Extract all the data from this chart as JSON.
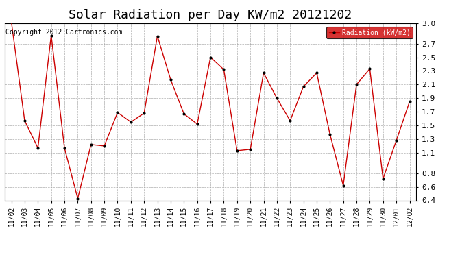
{
  "title": "Solar Radiation per Day KW/m2 20121202",
  "copyright_text": "Copyright 2012 Cartronics.com",
  "legend_label": "Radiation (kW/m2)",
  "x_labels": [
    "11/02",
    "11/03",
    "11/04",
    "11/05",
    "11/06",
    "11/07",
    "11/08",
    "11/09",
    "11/10",
    "11/11",
    "11/12",
    "11/13",
    "11/14",
    "11/15",
    "11/16",
    "11/17",
    "11/18",
    "11/19",
    "11/20",
    "11/21",
    "11/22",
    "11/23",
    "11/24",
    "11/25",
    "11/26",
    "11/27",
    "11/28",
    "11/29",
    "11/30",
    "12/01",
    "12/02"
  ],
  "y_values": [
    3.02,
    1.57,
    1.17,
    2.82,
    1.17,
    0.43,
    1.22,
    1.2,
    1.69,
    1.55,
    1.68,
    2.81,
    2.17,
    1.67,
    1.52,
    2.5,
    2.32,
    1.13,
    1.15,
    2.27,
    1.9,
    1.57,
    2.07,
    2.27,
    1.37,
    0.62,
    2.1,
    2.33,
    0.72,
    1.28,
    1.85
  ],
  "line_color": "#cc0000",
  "marker_color": "#000000",
  "bg_color": "#ffffff",
  "grid_color": "#999999",
  "ylim": [
    0.4,
    3.0
  ],
  "yticks": [
    0.4,
    0.6,
    0.8,
    1.1,
    1.3,
    1.5,
    1.7,
    1.9,
    2.1,
    2.3,
    2.5,
    2.7,
    3.0
  ],
  "title_fontsize": 13,
  "axis_fontsize": 7,
  "copyright_fontsize": 7,
  "legend_bg": "#cc0000",
  "legend_text_color": "#ffffff",
  "legend_fontsize": 7
}
